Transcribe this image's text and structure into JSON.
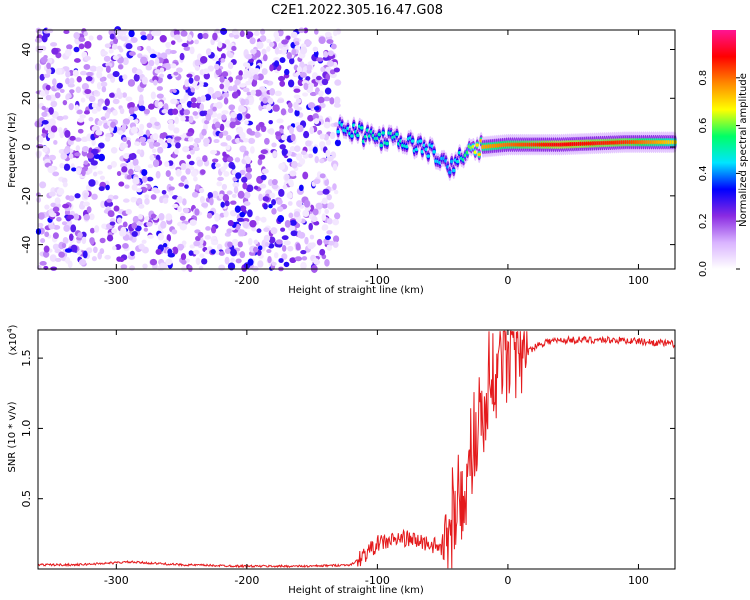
{
  "title": "C2E1.2022.305.16.47.G08",
  "chart_data": [
    {
      "type": "heatmap",
      "panel": "spectrogram",
      "xlabel": "Height of straight line (km)",
      "ylabel": "Frequency (Hz)",
      "xlim": [
        -360,
        128
      ],
      "ylim": [
        -50,
        48
      ],
      "xticks": [
        -300,
        -200,
        -100,
        0,
        100
      ],
      "yticks": [
        -40,
        -20,
        0,
        20,
        40
      ],
      "colorbar": {
        "label": "Normalized spectral amplitude",
        "range": [
          0,
          1
        ],
        "ticks": [
          0.0,
          0.2,
          0.4,
          0.6,
          0.8
        ],
        "tick_labels": [
          "0.0",
          "0.2",
          "0.4",
          "0.6",
          "0.8"
        ],
        "colors": [
          "#ffffff",
          "#d9b3ff",
          "#8a2be2",
          "#0000ff",
          "#00e5ff",
          "#00ff66",
          "#ffff00",
          "#ff8800",
          "#ff0000",
          "#ff1493"
        ]
      },
      "noise_region_x": [
        -360,
        -130
      ],
      "signal_track": [
        {
          "x": -130,
          "freq": 8,
          "amp": 0.45
        },
        {
          "x": -110,
          "freq": 5,
          "amp": 0.5
        },
        {
          "x": -90,
          "freq": 3,
          "amp": 0.5
        },
        {
          "x": -70,
          "freq": 1,
          "amp": 0.45
        },
        {
          "x": -55,
          "freq": -3,
          "amp": 0.45
        },
        {
          "x": -45,
          "freq": -10,
          "amp": 0.4
        },
        {
          "x": -35,
          "freq": -3,
          "amp": 0.5
        },
        {
          "x": -20,
          "freq": 0,
          "amp": 0.75
        },
        {
          "x": 0,
          "freq": 1,
          "amp": 0.8
        },
        {
          "x": 40,
          "freq": 1,
          "amp": 0.9
        },
        {
          "x": 90,
          "freq": 2,
          "amp": 0.85
        },
        {
          "x": 128,
          "freq": 2,
          "amp": 0.7
        }
      ]
    },
    {
      "type": "line",
      "panel": "snr",
      "xlabel": "Height of straight line (km)",
      "ylabel": "SNR (10 * v/v)",
      "scale_label": "(x10",
      "scale_exp": "4",
      "scale_close": ")",
      "xlim": [
        -360,
        128
      ],
      "ylim": [
        0,
        1.7
      ],
      "xticks": [
        -300,
        -200,
        -100,
        0,
        100
      ],
      "yticks": [
        0.5,
        1.0,
        1.5
      ],
      "ytick_labels": [
        "0.5",
        "1.0",
        "1.5"
      ],
      "color": "#e41a1c",
      "series": [
        {
          "name": "SNR",
          "x": [
            -360,
            -330,
            -290,
            -270,
            -250,
            -200,
            -150,
            -120,
            -110,
            -100,
            -90,
            -80,
            -70,
            -60,
            -50,
            -45,
            -40,
            -35,
            -30,
            -25,
            -20,
            -15,
            -12,
            -8,
            -5,
            0,
            10,
            20,
            30,
            50,
            80,
            100,
            128
          ],
          "y": [
            0.03,
            0.03,
            0.05,
            0.04,
            0.03,
            0.02,
            0.02,
            0.03,
            0.1,
            0.18,
            0.2,
            0.22,
            0.2,
            0.18,
            0.14,
            0.2,
            0.35,
            0.45,
            0.6,
            0.85,
            1.05,
            1.2,
            1.3,
            1.35,
            1.4,
            1.45,
            1.5,
            1.58,
            1.62,
            1.63,
            1.63,
            1.62,
            1.6
          ]
        }
      ]
    }
  ]
}
